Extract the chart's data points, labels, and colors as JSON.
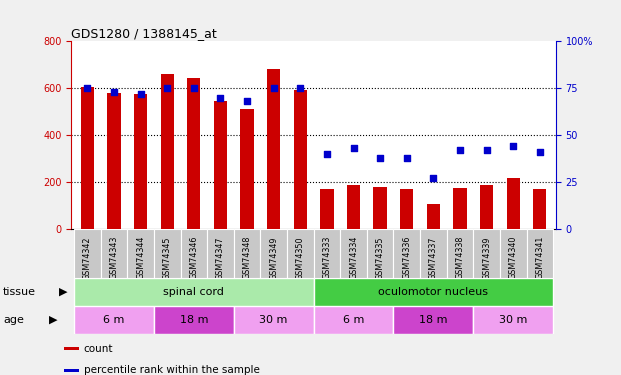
{
  "title": "GDS1280 / 1388145_at",
  "categories": [
    "GSM74342",
    "GSM74343",
    "GSM74344",
    "GSM74345",
    "GSM74346",
    "GSM74347",
    "GSM74348",
    "GSM74349",
    "GSM74350",
    "GSM74333",
    "GSM74334",
    "GSM74335",
    "GSM74336",
    "GSM74337",
    "GSM74338",
    "GSM74339",
    "GSM74340",
    "GSM74341"
  ],
  "bar_values": [
    605,
    580,
    575,
    660,
    645,
    545,
    510,
    680,
    590,
    168,
    185,
    178,
    170,
    105,
    175,
    185,
    215,
    170
  ],
  "dot_values": [
    75,
    73,
    72,
    75,
    75,
    70,
    68,
    75,
    75,
    40,
    43,
    38,
    38,
    27,
    42,
    42,
    44,
    41
  ],
  "ylim_left": [
    0,
    800
  ],
  "ylim_right": [
    0,
    100
  ],
  "yticks_left": [
    0,
    200,
    400,
    600,
    800
  ],
  "yticks_right": [
    0,
    25,
    50,
    75,
    100
  ],
  "bar_color": "#cc0000",
  "dot_color": "#0000cc",
  "tissue_groups": [
    {
      "label": "spinal cord",
      "start": 0,
      "end": 9,
      "color": "#aaeaaa"
    },
    {
      "label": "oculomotor nucleus",
      "start": 9,
      "end": 18,
      "color": "#44cc44"
    }
  ],
  "age_groups": [
    {
      "label": "6 m",
      "start": 0,
      "end": 3,
      "color": "#f0a0f0"
    },
    {
      "label": "18 m",
      "start": 3,
      "end": 6,
      "color": "#cc44cc"
    },
    {
      "label": "30 m",
      "start": 6,
      "end": 9,
      "color": "#f0a0f0"
    },
    {
      "label": "6 m",
      "start": 9,
      "end": 12,
      "color": "#f0a0f0"
    },
    {
      "label": "18 m",
      "start": 12,
      "end": 15,
      "color": "#cc44cc"
    },
    {
      "label": "30 m",
      "start": 15,
      "end": 18,
      "color": "#f0a0f0"
    }
  ],
  "legend_items": [
    {
      "label": "count",
      "color": "#cc0000"
    },
    {
      "label": "percentile rank within the sample",
      "color": "#0000cc"
    }
  ],
  "tissue_label": "tissue",
  "age_label": "age",
  "fig_bg": "#f0f0f0",
  "plot_bg": "#ffffff",
  "xtick_bg": "#c8c8c8",
  "left_axis_color": "#cc0000",
  "right_axis_color": "#0000cc"
}
